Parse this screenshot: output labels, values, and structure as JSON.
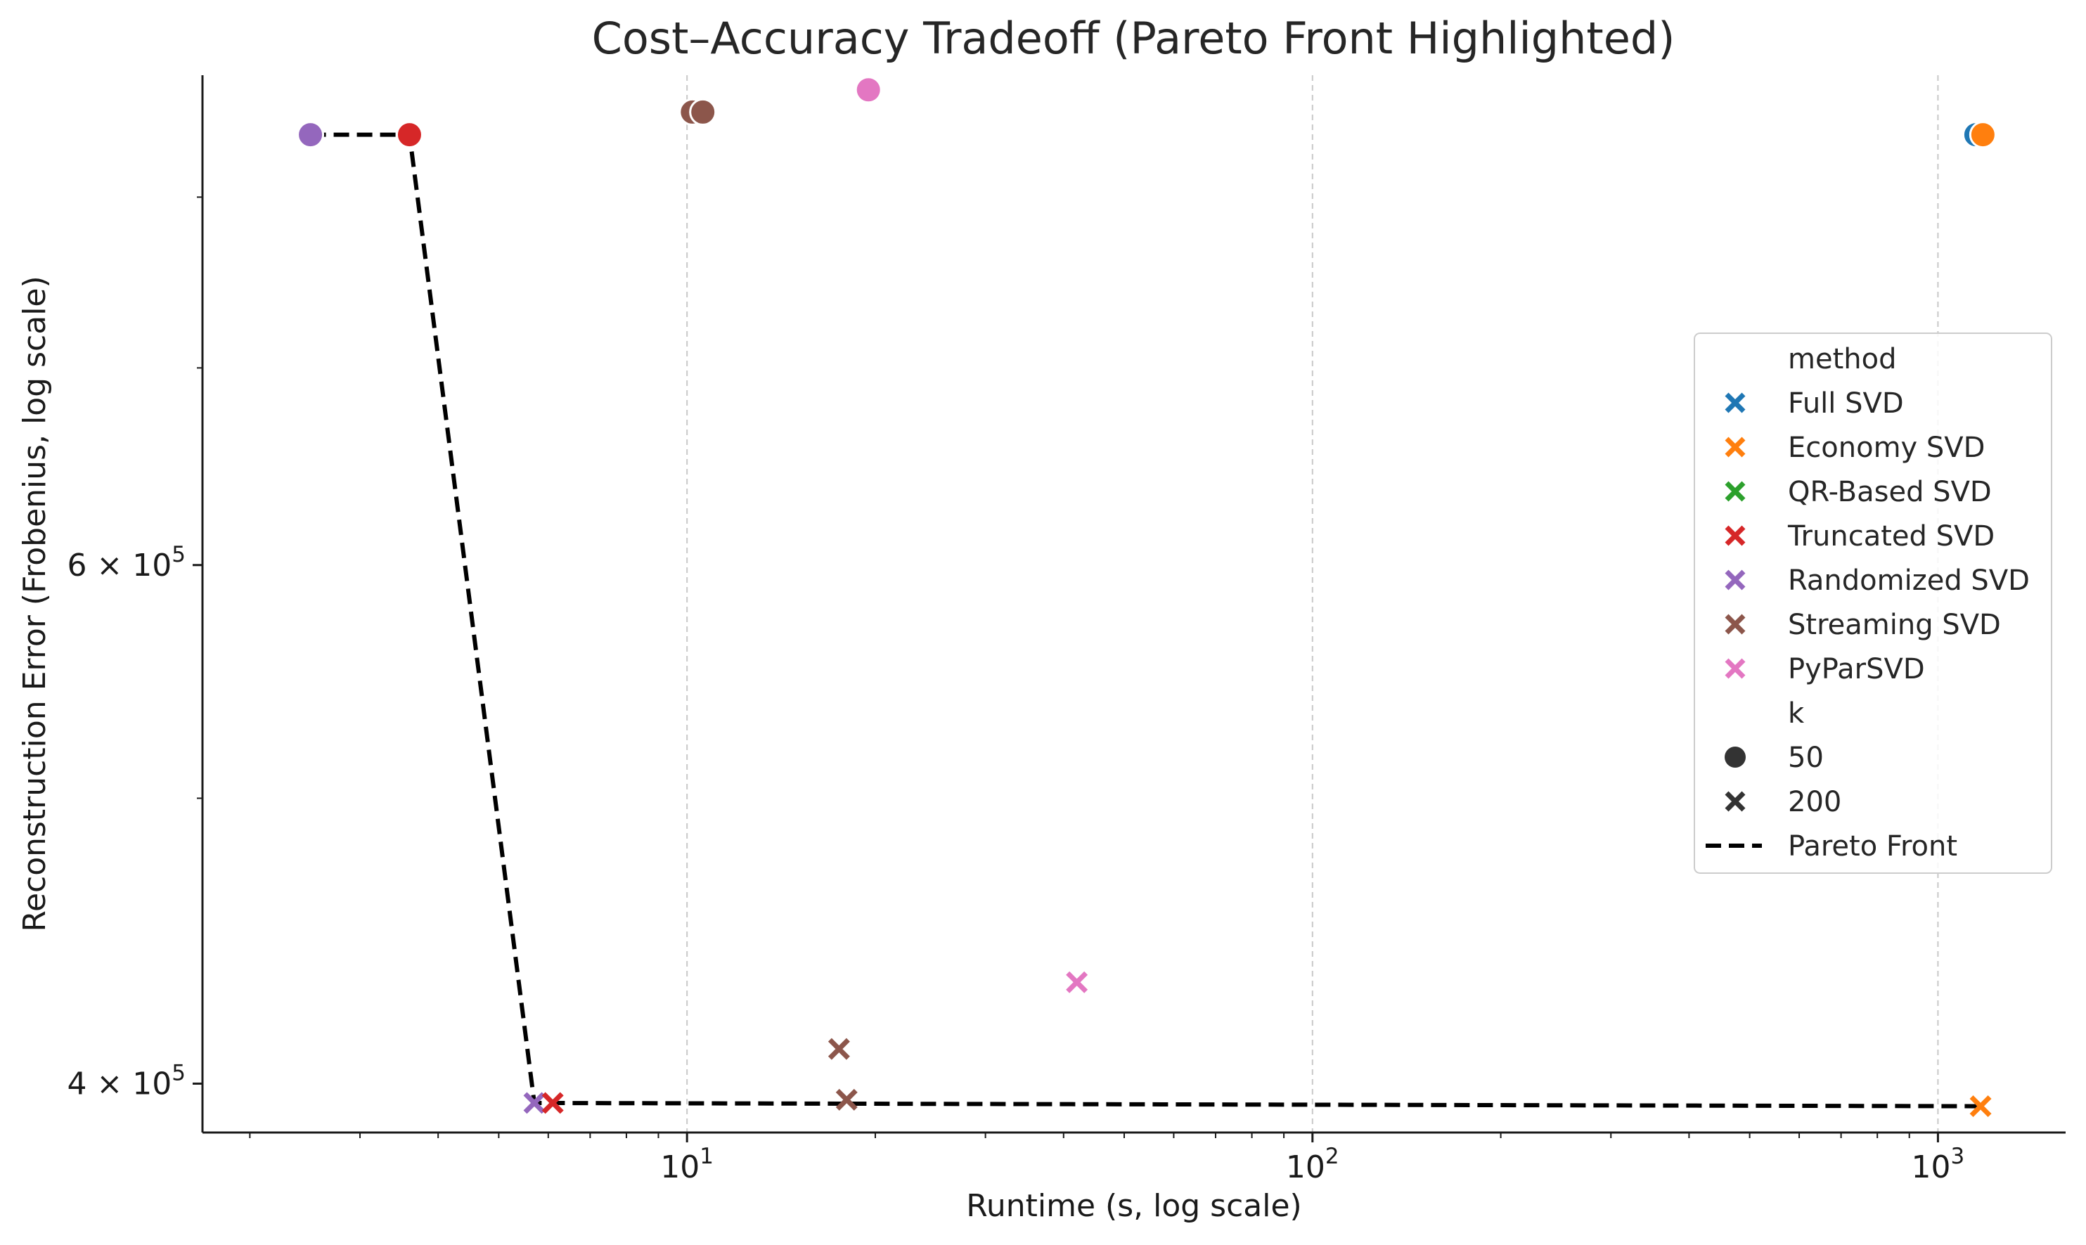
{
  "chart_data": {
    "type": "scatter",
    "title": "Cost–Accuracy Tradeoff (Pareto Front Highlighted)",
    "xlabel": "Runtime (s, log scale)",
    "ylabel": "Reconstruction Error (Frobenius, log scale)",
    "xscale": "log",
    "yscale": "log",
    "xlim": [
      1.68,
      1600
    ],
    "ylim": [
      385000,
      880000
    ],
    "x_ticks": [
      {
        "value": 10,
        "base": "10",
        "exp": "1"
      },
      {
        "value": 100,
        "base": "10",
        "exp": "2"
      },
      {
        "value": 1000,
        "base": "10",
        "exp": "3"
      }
    ],
    "y_ticks": [
      {
        "value": 400000,
        "mantissa": "4",
        "times": "×",
        "base": "10",
        "exp": "5"
      },
      {
        "value": 600000,
        "mantissa": "6",
        "times": "×",
        "base": "10",
        "exp": "5"
      }
    ],
    "grid": "x-major dashed",
    "legend_position": "right",
    "legend": {
      "method_title": "method",
      "methods": [
        {
          "name": "Full SVD",
          "color": "#1f77b4"
        },
        {
          "name": "Economy SVD",
          "color": "#ff7f0e"
        },
        {
          "name": "QR-Based SVD",
          "color": "#2ca02c"
        },
        {
          "name": "Truncated SVD",
          "color": "#d62728"
        },
        {
          "name": "Randomized SVD",
          "color": "#9467bd"
        },
        {
          "name": "Streaming SVD",
          "color": "#8c564b"
        },
        {
          "name": "PyParSVD",
          "color": "#e377c2"
        }
      ],
      "k_title": "k",
      "k_values": [
        {
          "label": "50",
          "marker": "circle"
        },
        {
          "label": "200",
          "marker": "x"
        }
      ],
      "front_label": "Pareto Front"
    },
    "points": [
      {
        "method": "Randomized SVD",
        "k": 50,
        "x": 2.5,
        "y": 840000
      },
      {
        "method": "Truncated SVD",
        "k": 50,
        "x": 3.6,
        "y": 840000
      },
      {
        "method": "Streaming SVD",
        "k": 50,
        "x": 10.2,
        "y": 855000
      },
      {
        "method": "Streaming SVD",
        "k": 50,
        "x": 10.6,
        "y": 855000
      },
      {
        "method": "PyParSVD",
        "k": 50,
        "x": 19.5,
        "y": 870000
      },
      {
        "method": "Full SVD",
        "k": 50,
        "x": 1150,
        "y": 840000
      },
      {
        "method": "Economy SVD",
        "k": 50,
        "x": 1180,
        "y": 840000
      },
      {
        "method": "Randomized SVD",
        "k": 200,
        "x": 5.7,
        "y": 394000
      },
      {
        "method": "Truncated SVD",
        "k": 200,
        "x": 6.1,
        "y": 394000
      },
      {
        "method": "Streaming SVD",
        "k": 200,
        "x": 17.5,
        "y": 411000
      },
      {
        "method": "Streaming SVD",
        "k": 200,
        "x": 18.0,
        "y": 395000
      },
      {
        "method": "PyParSVD",
        "k": 200,
        "x": 42,
        "y": 433000
      },
      {
        "method": "Economy SVD",
        "k": 200,
        "x": 1170,
        "y": 393000
      }
    ],
    "pareto_front": [
      {
        "x": 2.5,
        "y": 840000
      },
      {
        "x": 3.6,
        "y": 840000
      },
      {
        "x": 5.7,
        "y": 394000
      },
      {
        "x": 1170,
        "y": 393000
      }
    ]
  }
}
